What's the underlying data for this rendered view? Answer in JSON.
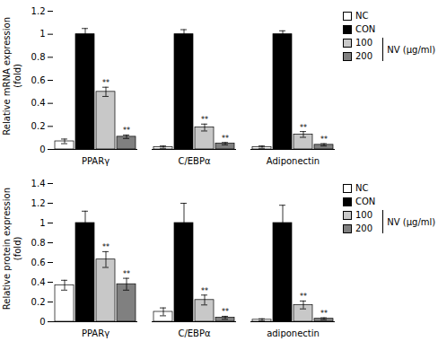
{
  "chart_data": [
    {
      "type": "bar",
      "ylabel": "Relative mRNA expression\n(fold)",
      "categories": [
        "PPARγ",
        "C/EBPα",
        "Adiponectin"
      ],
      "series": [
        {
          "name": "NC",
          "color": "white",
          "values": [
            0.07,
            0.02,
            0.02
          ],
          "errors": [
            0.02,
            0.01,
            0.01
          ]
        },
        {
          "name": "CON",
          "color": "black",
          "values": [
            1.0,
            1.0,
            1.0
          ],
          "errors": [
            0.05,
            0.04,
            0.03
          ]
        },
        {
          "name": "100",
          "color": "#c8c8c8",
          "values": [
            0.5,
            0.19,
            0.13
          ],
          "errors": [
            0.04,
            0.03,
            0.025
          ],
          "sig_labels": [
            "**",
            "**",
            "**"
          ]
        },
        {
          "name": "200",
          "color": "#808080",
          "values": [
            0.11,
            0.05,
            0.04
          ],
          "errors": [
            0.015,
            0.01,
            0.01
          ],
          "sig_labels": [
            "**",
            "**",
            "**"
          ]
        }
      ],
      "ylim": [
        0,
        1.2
      ],
      "yticks": [
        0,
        0.2,
        0.4,
        0.6,
        0.8,
        1,
        1.2
      ],
      "legend": "right",
      "annotation": "NV (μg/ml)"
    },
    {
      "type": "bar",
      "ylabel": "Relative protein expression\n(fold)",
      "categories": [
        "PPARγ",
        "C/EBPα",
        "adiponectin"
      ],
      "series": [
        {
          "name": "NC",
          "color": "white",
          "values": [
            0.37,
            0.1,
            0.02
          ],
          "errors": [
            0.05,
            0.04,
            0.01
          ]
        },
        {
          "name": "CON",
          "color": "black",
          "values": [
            1.0,
            1.0,
            1.0
          ],
          "errors": [
            0.12,
            0.2,
            0.18
          ]
        },
        {
          "name": "100",
          "color": "#c8c8c8",
          "values": [
            0.63,
            0.22,
            0.17
          ],
          "errors": [
            0.08,
            0.05,
            0.04
          ],
          "sig_labels": [
            "**",
            "**",
            "**"
          ]
        },
        {
          "name": "200",
          "color": "#808080",
          "values": [
            0.38,
            0.04,
            0.03
          ],
          "errors": [
            0.06,
            0.015,
            0.01
          ],
          "sig_labels": [
            "**",
            "**",
            "**"
          ]
        }
      ],
      "ylim": [
        0,
        1.4
      ],
      "yticks": [
        0,
        0.2,
        0.4,
        0.6,
        0.8,
        1,
        1.2,
        1.4
      ],
      "legend": "right",
      "annotation": "NV (μg/ml)"
    }
  ]
}
